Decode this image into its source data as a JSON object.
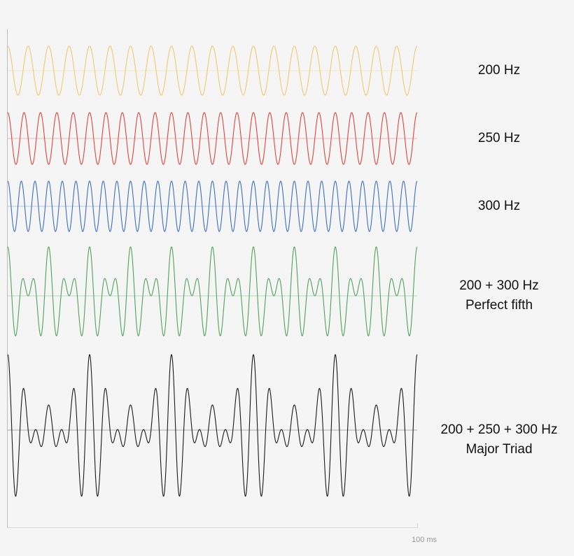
{
  "chart_data": {
    "type": "line",
    "title": "",
    "x_range_ms": [
      0,
      100
    ],
    "x_end_label": "100 ms",
    "xlabel": "",
    "ylabel": "",
    "grid": false,
    "series": [
      {
        "name": "200 Hz",
        "label_lines": [
          "200 Hz"
        ],
        "frequencies_hz": [
          200
        ],
        "color": "#f2c96d",
        "peak_amplitude": 1
      },
      {
        "name": "250 Hz",
        "label_lines": [
          "250 Hz"
        ],
        "frequencies_hz": [
          250
        ],
        "color": "#e0443e",
        "peak_amplitude": 1
      },
      {
        "name": "300 Hz",
        "label_lines": [
          "300 Hz"
        ],
        "frequencies_hz": [
          300
        ],
        "color": "#3a6fc4",
        "peak_amplitude": 1
      },
      {
        "name": "200 + 300 Hz",
        "label_lines": [
          "200 + 300 Hz",
          "Perfect fifth"
        ],
        "frequencies_hz": [
          200,
          300
        ],
        "color": "#4fa35a",
        "peak_amplitude": 2
      },
      {
        "name": "200 + 250 + 300 Hz",
        "label_lines": [
          "200 + 250 + 300 Hz",
          "Major Triad"
        ],
        "frequencies_hz": [
          200,
          250,
          300
        ],
        "color": "#1a1a1a",
        "peak_amplitude": 3
      }
    ]
  }
}
